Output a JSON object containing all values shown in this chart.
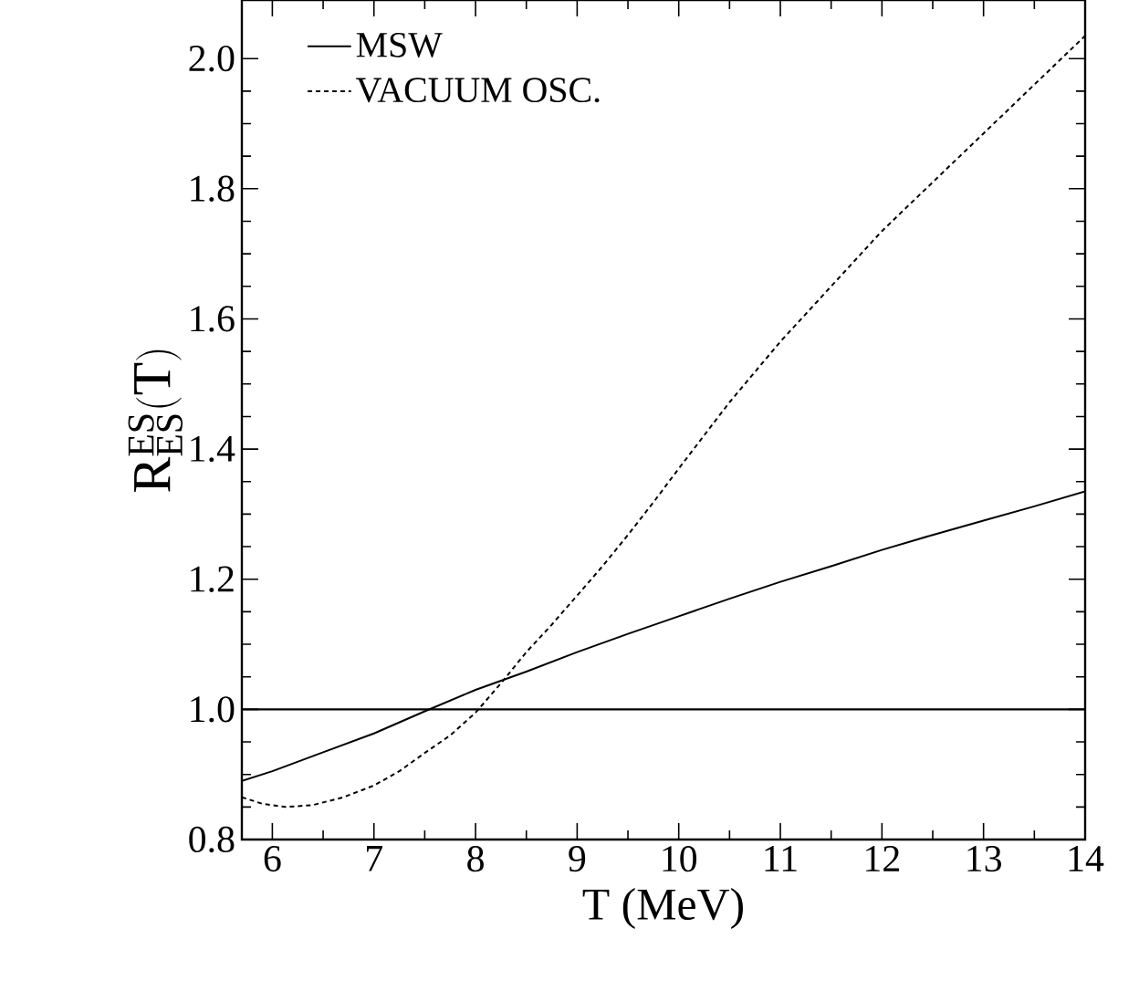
{
  "chart_data": {
    "type": "line",
    "xlabel": "T  (MeV)",
    "ylabel": "\\mathrm{R}^{\\mathrm{ES}}_{\\mathrm{ES}}(\\mathrm{T})",
    "xlim": [
      5.7,
      14
    ],
    "ylim": [
      0.8,
      2.09
    ],
    "xticks": [
      6,
      7,
      8,
      9,
      10,
      11,
      12,
      13,
      14
    ],
    "yticks": [
      {
        "value": 0.8,
        "label": "0.8"
      },
      {
        "value": 1.0,
        "label": "1.0"
      },
      {
        "value": 1.2,
        "label": "1.2"
      },
      {
        "value": 1.4,
        "label": "1.4"
      },
      {
        "value": 1.6,
        "label": "1.6"
      },
      {
        "value": 1.8,
        "label": "1.8"
      },
      {
        "value": 2.0,
        "label": "2.0"
      }
    ],
    "legend": "top left",
    "grid": false,
    "marker": "none",
    "ref_lines": [
      {
        "axis": "y",
        "value": 1.0,
        "color": "#000000",
        "line_style": "solid"
      }
    ],
    "series": [
      {
        "name": "MSW",
        "color": "#000000",
        "line_style": "solid",
        "x": [
          5.7,
          6,
          6.5,
          7,
          7.5,
          8,
          8.5,
          9,
          9.5,
          10,
          10.5,
          11,
          11.5,
          12,
          12.5,
          13,
          13.5,
          14
        ],
        "values": [
          0.89,
          0.905,
          0.934,
          0.963,
          0.997,
          1.03,
          1.058,
          1.088,
          1.116,
          1.143,
          1.17,
          1.196,
          1.22,
          1.245,
          1.268,
          1.29,
          1.312,
          1.335
        ]
      },
      {
        "name": "VACUUM OSC.",
        "color": "#000000",
        "line_style": "dotted",
        "x": [
          5.7,
          5.9,
          6.13,
          6.4,
          6.7,
          7,
          7.25,
          7.5,
          7.75,
          8,
          8.25,
          8.5,
          8.75,
          9,
          9.25,
          9.5,
          9.75,
          10,
          10.5,
          11,
          11.5,
          12,
          12.5,
          13,
          13.5,
          14
        ],
        "values": [
          0.865,
          0.855,
          0.85,
          0.853,
          0.865,
          0.883,
          0.905,
          0.933,
          0.96,
          0.995,
          1.04,
          1.088,
          1.13,
          1.175,
          1.22,
          1.268,
          1.318,
          1.37,
          1.472,
          1.565,
          1.65,
          1.735,
          1.81,
          1.885,
          1.96,
          2.035
        ]
      }
    ]
  }
}
